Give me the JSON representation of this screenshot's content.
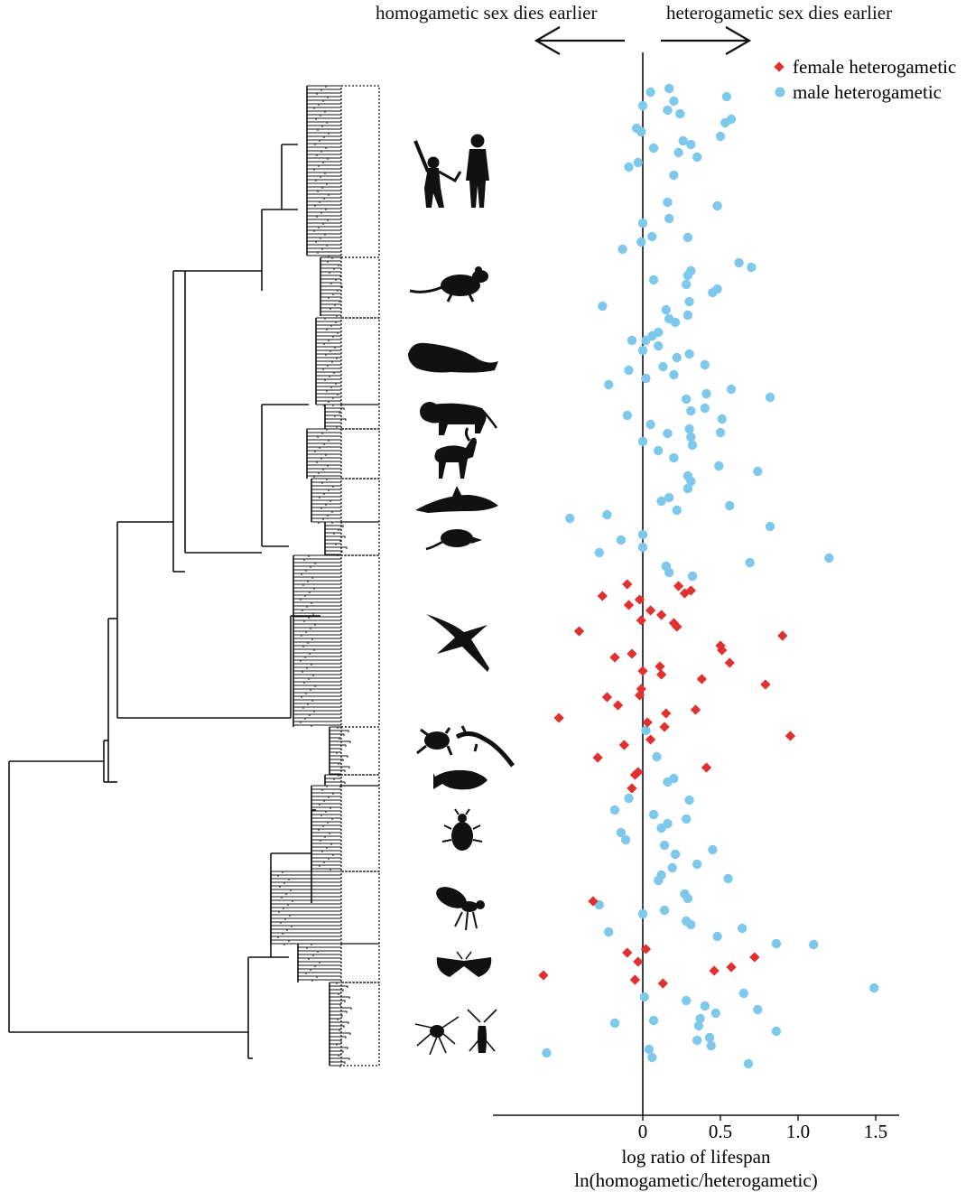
{
  "header": {
    "left_label": "homogametic sex dies earlier",
    "right_label": "heterogametic sex dies earlier"
  },
  "colors": {
    "female": "#e03030",
    "male": "#7ec8ec",
    "ink": "#111111"
  },
  "icons": [
    "primates-icon",
    "rodent-icon",
    "seal-icon",
    "lion-icon",
    "goat-icon",
    "dolphin-icon",
    "shrew-icon",
    "bird-icon",
    "frog-lizard-icon",
    "fish-icon",
    "beetle-icon",
    "fly-icon",
    "moth-icon",
    "spider-cricket-icon"
  ],
  "chart_data": {
    "type": "scatter",
    "title": "",
    "xlabel": "log ratio of lifespan",
    "xlabel2": "ln(homogametic/heterogametic)",
    "xlim": [
      -0.97,
      1.66
    ],
    "xticks": [
      0,
      0.5,
      1.0,
      1.5
    ],
    "xtick_labels": [
      "0",
      "0.5",
      "1.0",
      "1.5"
    ],
    "grid": false,
    "legend": {
      "position": "top-right"
    },
    "series": [
      {
        "name": "female heterogametic",
        "marker": "diamond",
        "points": [
          [
            -0.1,
            647
          ],
          [
            0.23,
            649
          ],
          [
            0.31,
            654
          ],
          [
            -0.26,
            660
          ],
          [
            0.27,
            657
          ],
          [
            -0.02,
            664
          ],
          [
            -0.09,
            670
          ],
          [
            0.05,
            676
          ],
          [
            0.12,
            681
          ],
          [
            -0.01,
            687
          ],
          [
            0.2,
            690
          ],
          [
            0.22,
            694
          ],
          [
            -0.41,
            699
          ],
          [
            0.9,
            704
          ],
          [
            0.5,
            715
          ],
          [
            0.51,
            720
          ],
          [
            0.56,
            734
          ],
          [
            -0.18,
            728
          ],
          [
            -0.07,
            724
          ],
          [
            0.11,
            738
          ],
          [
            0.0,
            743
          ],
          [
            0.12,
            747
          ],
          [
            0.38,
            752
          ],
          [
            0.79,
            758
          ],
          [
            -0.01,
            763
          ],
          [
            -0.02,
            770
          ],
          [
            -0.23,
            772
          ],
          [
            -0.16,
            781
          ],
          [
            0.15,
            790
          ],
          [
            0.34,
            786
          ],
          [
            -0.54,
            795
          ],
          [
            0.03,
            800
          ],
          [
            0.14,
            805
          ],
          [
            0.95,
            815
          ],
          [
            0.05,
            819
          ],
          [
            -0.12,
            825
          ],
          [
            -0.29,
            839
          ],
          [
            0.41,
            850
          ],
          [
            -0.03,
            855
          ],
          [
            -0.05,
            858
          ],
          [
            -0.07,
            873
          ],
          [
            -0.32,
            998
          ],
          [
            -0.1,
            1055
          ],
          [
            0.02,
            1051
          ],
          [
            0.72,
            1060
          ],
          [
            0.57,
            1071
          ],
          [
            -0.03,
            1065
          ],
          [
            0.46,
            1075
          ],
          [
            -0.64,
            1080
          ],
          [
            -0.05,
            1085
          ],
          [
            0.13,
            1089
          ]
        ]
      },
      {
        "name": "male heterogametic",
        "marker": "circle",
        "points": [
          [
            0.05,
            102
          ],
          [
            0.17,
            98
          ],
          [
            0.54,
            107
          ],
          [
            0.2,
            112
          ],
          [
            0.0,
            117
          ],
          [
            0.16,
            122
          ],
          [
            0.24,
            126
          ],
          [
            0.57,
            132
          ],
          [
            0.53,
            136
          ],
          [
            -0.04,
            142
          ],
          [
            -0.01,
            146
          ],
          [
            0.5,
            151
          ],
          [
            0.26,
            156
          ],
          [
            0.31,
            160
          ],
          [
            0.07,
            164
          ],
          [
            0.23,
            169
          ],
          [
            0.35,
            174
          ],
          [
            -0.03,
            180
          ],
          [
            -0.09,
            185
          ],
          [
            0.2,
            194
          ],
          [
            0.16,
            224
          ],
          [
            0.48,
            228
          ],
          [
            0.17,
            242
          ],
          [
            0.0,
            247
          ],
          [
            0.06,
            262
          ],
          [
            0.29,
            263
          ],
          [
            -0.01,
            268
          ],
          [
            -0.13,
            276
          ],
          [
            0.62,
            291
          ],
          [
            0.7,
            296
          ],
          [
            0.31,
            300
          ],
          [
            0.29,
            305
          ],
          [
            0.07,
            310
          ],
          [
            0.28,
            315
          ],
          [
            0.48,
            320
          ],
          [
            0.45,
            324
          ],
          [
            0.3,
            334
          ],
          [
            -0.26,
            339
          ],
          [
            0.15,
            343
          ],
          [
            0.29,
            349
          ],
          [
            0.17,
            353
          ],
          [
            0.21,
            357
          ],
          [
            0.1,
            368
          ],
          [
            0.06,
            372
          ],
          [
            0.02,
            377
          ],
          [
            -0.07,
            377
          ],
          [
            0.1,
            383
          ],
          [
            -0.09,
            410
          ],
          [
            0.22,
            396
          ],
          [
            0.3,
            392
          ],
          [
            0.0,
            388
          ],
          [
            0.4,
            404
          ],
          [
            0.13,
            406
          ],
          [
            0.2,
            415
          ],
          [
            0.02,
            419
          ],
          [
            -0.22,
            426
          ],
          [
            0.57,
            431
          ],
          [
            0.82,
            440
          ],
          [
            0.41,
            436
          ],
          [
            0.28,
            442
          ],
          [
            0.31,
            455
          ],
          [
            0.4,
            452
          ],
          [
            0.51,
            464
          ],
          [
            -0.1,
            460
          ],
          [
            0.05,
            470
          ],
          [
            0.3,
            475
          ],
          [
            0.16,
            480
          ],
          [
            0.5,
            479
          ],
          [
            0.31,
            484
          ],
          [
            0.0,
            489
          ],
          [
            0.32,
            493
          ],
          [
            0.1,
            499
          ],
          [
            0.2,
            507
          ],
          [
            0.49,
            516
          ],
          [
            0.74,
            522
          ],
          [
            0.29,
            527
          ],
          [
            0.31,
            533
          ],
          [
            0.29,
            541
          ],
          [
            0.17,
            551
          ],
          [
            0.12,
            555
          ],
          [
            0.56,
            560
          ],
          [
            0.22,
            565
          ],
          [
            -0.47,
            574
          ],
          [
            -0.23,
            570
          ],
          [
            0.82,
            583
          ],
          [
            -0.14,
            598
          ],
          [
            0.0,
            592
          ],
          [
            0.0,
            606
          ],
          [
            -0.28,
            612
          ],
          [
            1.2,
            618
          ],
          [
            0.69,
            623
          ],
          [
            0.15,
            627
          ],
          [
            0.17,
            634
          ],
          [
            0.32,
            638
          ],
          [
            0.02,
            809
          ],
          [
            0.09,
            838
          ],
          [
            0.2,
            862
          ],
          [
            0.16,
            866
          ],
          [
            0.3,
            886
          ],
          [
            -0.09,
            884
          ],
          [
            -0.18,
            897
          ],
          [
            0.07,
            902
          ],
          [
            0.28,
            907
          ],
          [
            0.16,
            912
          ],
          [
            0.12,
            917
          ],
          [
            -0.14,
            922
          ],
          [
            -0.11,
            930
          ],
          [
            0.14,
            936
          ],
          [
            0.45,
            941
          ],
          [
            0.21,
            946
          ],
          [
            0.35,
            957
          ],
          [
            0.19,
            961
          ],
          [
            0.55,
            973
          ],
          [
            0.12,
            969
          ],
          [
            0.1,
            975
          ],
          [
            0.27,
            990
          ],
          [
            0.29,
            995
          ],
          [
            -0.28,
            1002
          ],
          [
            0.14,
            1008
          ],
          [
            0.0,
            1012
          ],
          [
            0.28,
            1020
          ],
          [
            0.31,
            1024
          ],
          [
            0.64,
            1028
          ],
          [
            -0.22,
            1032
          ],
          [
            0.48,
            1037
          ],
          [
            0.86,
            1045
          ],
          [
            1.1,
            1046
          ],
          [
            1.49,
            1094
          ],
          [
            0.65,
            1100
          ],
          [
            0.01,
            1104
          ],
          [
            0.28,
            1108
          ],
          [
            0.4,
            1114
          ],
          [
            0.74,
            1118
          ],
          [
            0.47,
            1122
          ],
          [
            0.07,
            1130
          ],
          [
            0.37,
            1128
          ],
          [
            0.36,
            1136
          ],
          [
            -0.18,
            1133
          ],
          [
            0.86,
            1142
          ],
          [
            0.43,
            1149
          ],
          [
            0.35,
            1152
          ],
          [
            0.44,
            1158
          ],
          [
            0.04,
            1162
          ],
          [
            -0.62,
            1166
          ],
          [
            0.06,
            1171
          ],
          [
            0.68,
            1178
          ]
        ]
      }
    ]
  }
}
